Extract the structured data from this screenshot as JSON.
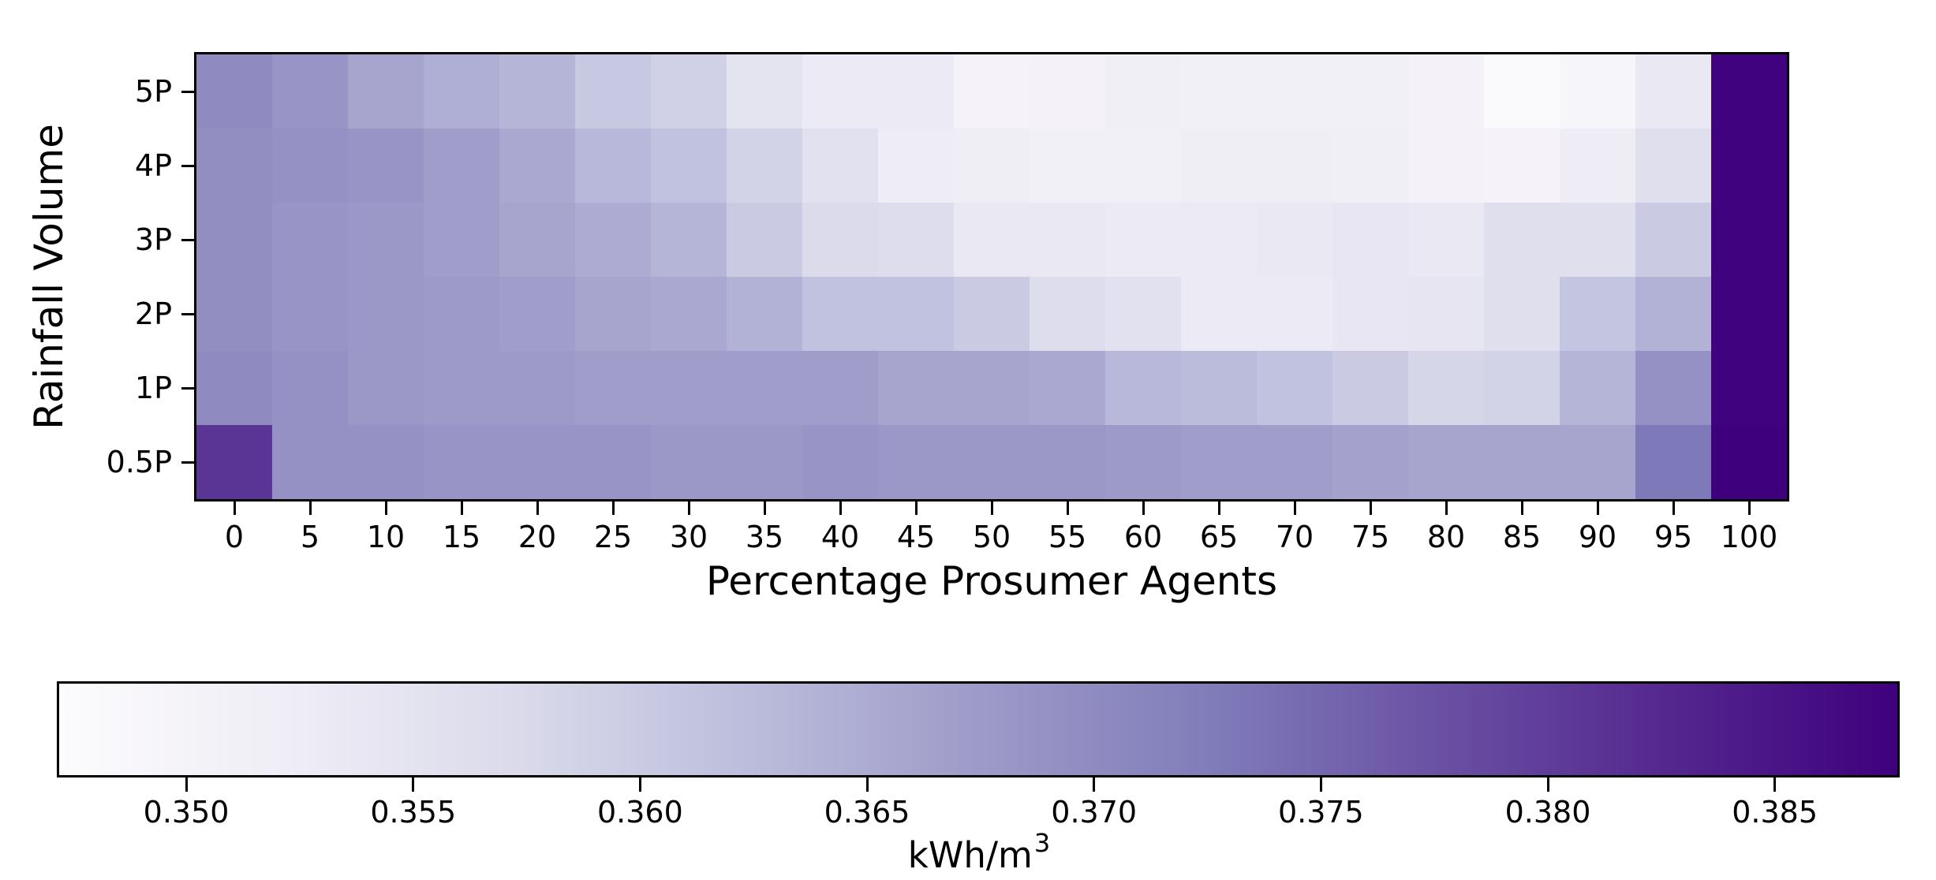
{
  "figure": {
    "background": "#ffffff",
    "spine_color": "#000000",
    "text_color": "#000000"
  },
  "chart_data": {
    "type": "heatmap",
    "title": "",
    "xlabel": "Percentage Prosumer Agents",
    "ylabel": "Rainfall Volume",
    "x_tick_labels": [
      "0",
      "5",
      "10",
      "15",
      "20",
      "25",
      "30",
      "35",
      "40",
      "45",
      "50",
      "55",
      "60",
      "65",
      "70",
      "75",
      "80",
      "85",
      "90",
      "95",
      "100"
    ],
    "y_tick_labels": [
      "5P",
      "4P",
      "3P",
      "2P",
      "1P",
      "0.5P"
    ],
    "values_rows_top_to_bottom": [
      [
        0.37,
        0.3685,
        0.366,
        0.3645,
        0.3635,
        0.3605,
        0.359,
        0.355,
        0.353,
        0.353,
        0.35,
        0.3505,
        0.3515,
        0.351,
        0.351,
        0.351,
        0.3505,
        0.348,
        0.3495,
        0.3535,
        0.3875
      ],
      [
        0.3695,
        0.369,
        0.3685,
        0.367,
        0.3655,
        0.363,
        0.3615,
        0.3585,
        0.3555,
        0.3525,
        0.352,
        0.351,
        0.351,
        0.352,
        0.352,
        0.3515,
        0.3505,
        0.35,
        0.3525,
        0.356,
        0.3875
      ],
      [
        0.3695,
        0.3685,
        0.368,
        0.367,
        0.366,
        0.365,
        0.3635,
        0.36,
        0.357,
        0.3565,
        0.3535,
        0.3535,
        0.353,
        0.353,
        0.3535,
        0.354,
        0.3535,
        0.356,
        0.356,
        0.36,
        0.3875
      ],
      [
        0.3695,
        0.3685,
        0.368,
        0.3675,
        0.367,
        0.366,
        0.3655,
        0.364,
        0.3615,
        0.3615,
        0.36,
        0.3565,
        0.3555,
        0.353,
        0.353,
        0.354,
        0.3545,
        0.356,
        0.361,
        0.364,
        0.3875
      ],
      [
        0.37,
        0.369,
        0.368,
        0.3675,
        0.3675,
        0.367,
        0.367,
        0.367,
        0.367,
        0.366,
        0.366,
        0.3655,
        0.363,
        0.3625,
        0.3615,
        0.36,
        0.358,
        0.3585,
        0.3635,
        0.369,
        0.3875
      ],
      [
        0.381,
        0.369,
        0.369,
        0.3685,
        0.3685,
        0.3685,
        0.368,
        0.368,
        0.3685,
        0.368,
        0.368,
        0.368,
        0.3675,
        0.367,
        0.367,
        0.3665,
        0.366,
        0.366,
        0.366,
        0.373,
        0.388
      ]
    ],
    "grid": false,
    "legend": false,
    "colorbar": {
      "orientation": "horizontal",
      "position": "bottom",
      "label": "kWh/m",
      "label_superscript": "3",
      "tick_labels": [
        "0.350",
        "0.355",
        "0.360",
        "0.365",
        "0.370",
        "0.375",
        "0.380",
        "0.385"
      ],
      "vmin": 0.3472,
      "vmax": 0.3877,
      "colormap": "Purples",
      "colormap_anchors": [
        "#fcfbfd",
        "#efedf5",
        "#dadaeb",
        "#bcbddc",
        "#9e9ac8",
        "#807dba",
        "#6a51a3",
        "#54278f",
        "#3f007d"
      ]
    }
  }
}
